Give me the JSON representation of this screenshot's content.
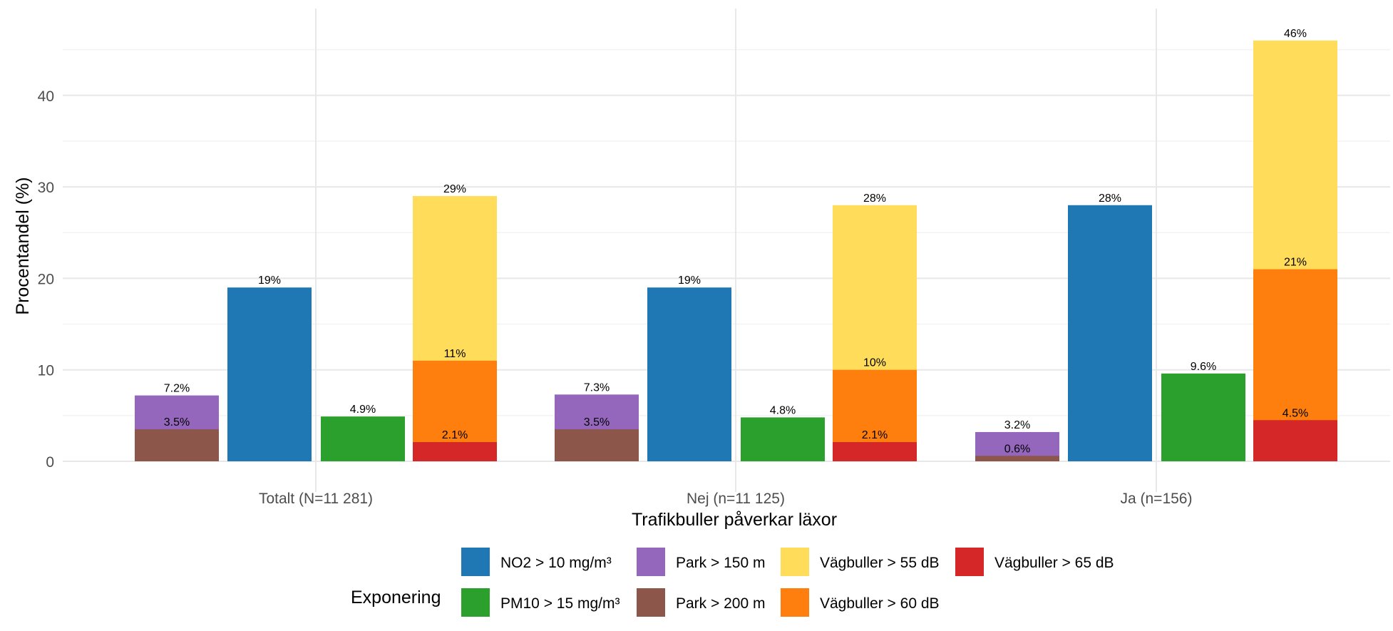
{
  "chart_data": {
    "type": "bar",
    "xlabel": "Trafikbuller påverkar läxor",
    "ylabel": "Procentandel (%)",
    "ylim": [
      0,
      49.5
    ],
    "yticks": [
      0,
      10,
      20,
      30,
      40
    ],
    "grid": true,
    "categories": [
      "Totalt (N=11 281)",
      "Nej (n=11 125)",
      "Ja (n=156)"
    ],
    "bar_groups": [
      "Park",
      "NO2",
      "PM10",
      "Vägbuller"
    ],
    "series": [
      {
        "name": "Park > 150 m",
        "group": "Park",
        "color": "#9467BD",
        "values": [
          7.2,
          7.3,
          3.2
        ],
        "labels": [
          "7.2%",
          "7.3%",
          "3.2%"
        ]
      },
      {
        "name": "Park > 200 m",
        "group": "Park",
        "color": "#8C564B",
        "values": [
          3.5,
          3.5,
          0.6
        ],
        "labels": [
          "3.5%",
          "3.5%",
          "0.6%"
        ]
      },
      {
        "name": "NO2 > 10 mg/m³",
        "group": "NO2",
        "color": "#1F77B4",
        "values": [
          19,
          19,
          28
        ],
        "labels": [
          "19%",
          "19%",
          "28%"
        ]
      },
      {
        "name": "PM10 > 15 mg/m³",
        "group": "PM10",
        "color": "#2CA02C",
        "values": [
          4.9,
          4.8,
          9.6
        ],
        "labels": [
          "4.9%",
          "4.8%",
          "9.6%"
        ]
      },
      {
        "name": "Vägbuller > 55 dB",
        "group": "Vägbuller",
        "color": "#FFDC5A",
        "values": [
          29,
          28,
          46
        ],
        "labels": [
          "29%",
          "28%",
          "46%"
        ]
      },
      {
        "name": "Vägbuller > 60 dB",
        "group": "Vägbuller",
        "color": "#FF7F0E",
        "values": [
          11,
          10,
          21
        ],
        "labels": [
          "11%",
          "10%",
          "21%"
        ]
      },
      {
        "name": "Vägbuller > 65 dB",
        "group": "Vägbuller",
        "color": "#D62728",
        "values": [
          2.1,
          2.1,
          4.5
        ],
        "labels": [
          "2.1%",
          "2.1%",
          "4.5%"
        ]
      }
    ],
    "legend": {
      "title": "Exponering",
      "position": "bottom",
      "items": [
        {
          "name": "NO2 > 10 mg/m³",
          "color": "#1F77B4"
        },
        {
          "name": "Park > 150 m",
          "color": "#9467BD"
        },
        {
          "name": "Vägbuller > 55 dB",
          "color": "#FFDC5A"
        },
        {
          "name": "Vägbuller > 65 dB",
          "color": "#D62728"
        },
        {
          "name": "PM10 > 15 mg/m³",
          "color": "#2CA02C"
        },
        {
          "name": "Park > 200 m",
          "color": "#8C564B"
        },
        {
          "name": "Vägbuller > 60 dB",
          "color": "#FF7F0E"
        }
      ]
    }
  }
}
